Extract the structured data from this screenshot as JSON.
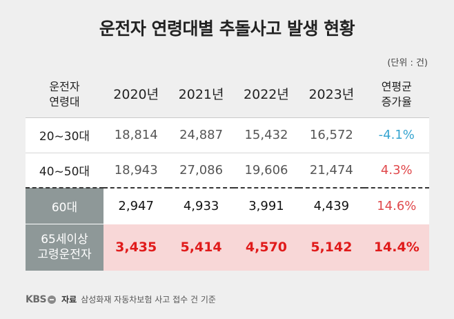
{
  "title": "운전자 연령대별 추돌사고 발생 현황",
  "unit": "(단위 : 건)",
  "footer": {
    "brand": "KBS",
    "source_label": "자료",
    "source_text": "삼성화재 자동차보험 사고 접수 건 기준"
  },
  "colors": {
    "decline": "#35a4d0",
    "increase": "#e0484b",
    "highlight_bg": "#f8d7d7",
    "label_bg": "#8e9898"
  },
  "chart_data": {
    "type": "table",
    "columns": [
      {
        "line1": "운전자",
        "line2": "연령대"
      },
      {
        "line1": "2020년"
      },
      {
        "line1": "2021년"
      },
      {
        "line1": "2022년"
      },
      {
        "line1": "2023년"
      },
      {
        "line1": "연평균",
        "line2": "증가율"
      }
    ],
    "rows": [
      {
        "line1": "20~30대",
        "values": [
          "18,814",
          "24,887",
          "15,432",
          "16,572"
        ],
        "growth": "-4.1%"
      },
      {
        "line1": "40~50대",
        "values": [
          "18,943",
          "27,086",
          "19,606",
          "21,474"
        ],
        "growth": "4.3%"
      },
      {
        "line1": "60대",
        "values": [
          "2,947",
          "4,933",
          "3,991",
          "4,439"
        ],
        "growth": "14.6%"
      },
      {
        "line1": "65세이상",
        "line2": "고령운전자",
        "values": [
          "3,435",
          "5,414",
          "4,570",
          "5,142"
        ],
        "growth": "14.4%"
      }
    ]
  }
}
